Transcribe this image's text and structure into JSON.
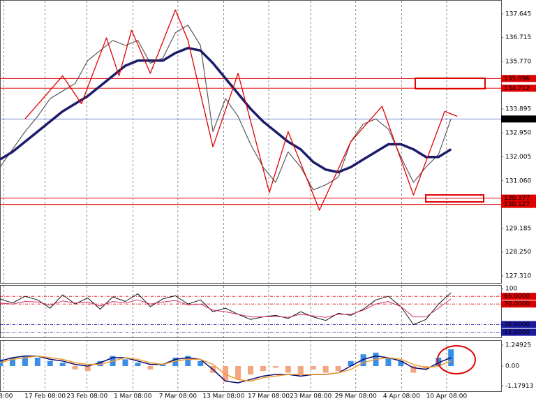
{
  "chart_data": [
    {
      "type": "line",
      "xlim": [
        0,
        80
      ],
      "ylim": [
        127.03,
        138.11
      ],
      "x": [
        0,
        2,
        4,
        6,
        8,
        10,
        12,
        14,
        16,
        18,
        20,
        22,
        24,
        26,
        28,
        30,
        32,
        34,
        36,
        38,
        40,
        42,
        44,
        46,
        48,
        50,
        52,
        54,
        56,
        58,
        60,
        62,
        64,
        66,
        68,
        70,
        72
      ],
      "xticks": [
        {
          "value": 0.6,
          "label": "08:00"
        },
        {
          "value": 7.2,
          "label": "17 Feb 08:00"
        },
        {
          "value": 13.9,
          "label": "23 Feb 08:00"
        },
        {
          "value": 21.2,
          "label": "1 Mar 08:00"
        },
        {
          "value": 28.4,
          "label": "7 Mar 08:00"
        },
        {
          "value": 35.7,
          "label": "13 Mar 08:00"
        },
        {
          "value": 42.9,
          "label": "17 Mar 08:00"
        },
        {
          "value": 49.6,
          "label": "23 Mar 08:00"
        },
        {
          "value": 56.8,
          "label": "29 Mar 08:00"
        },
        {
          "value": 64.1,
          "label": "4 Apr 08:00"
        },
        {
          "value": 71.3,
          "label": "10 Apr 08:00"
        }
      ],
      "yticks": [
        137.645,
        136.715,
        {
          "value": 135.77,
          "label": "135.770"
        },
        133.895,
        {
          "value": 132.95,
          "label": "132.950"
        },
        132.005,
        {
          "value": 131.06,
          "label": "131.060"
        },
        129.185,
        {
          "value": 128.25,
          "label": "128.250"
        },
        {
          "value": 127.31,
          "label": "127.310"
        }
      ],
      "levels": [
        {
          "value": 135.096,
          "color": "#e00000"
        },
        {
          "value": 134.712,
          "color": "#e00000"
        },
        {
          "value": 133.498,
          "color": "#000000",
          "line_color": "#7a8fd8"
        },
        {
          "value": 130.377,
          "color": "#e00000"
        },
        {
          "value": 130.127,
          "color": "#e00000"
        }
      ],
      "series": [
        {
          "color": "#5a5a5a",
          "width": 1.2,
          "values": [
            131.6,
            132.3,
            133.0,
            133.6,
            134.3,
            134.6,
            134.9,
            135.8,
            136.2,
            136.6,
            136.4,
            136.6,
            135.7,
            135.9,
            136.9,
            137.2,
            136.4,
            133.0,
            134.3,
            133.6,
            132.5,
            131.6,
            131.0,
            132.2,
            131.6,
            130.7,
            130.9,
            131.2,
            132.6,
            133.3,
            133.5,
            133.1,
            132.0,
            131.0,
            131.6,
            132.1,
            133.5
          ]
        },
        {
          "color": "#1c1c6b",
          "width": 3.5,
          "values": [
            131.9,
            132.2,
            132.6,
            133.0,
            133.4,
            133.8,
            134.1,
            134.4,
            134.8,
            135.2,
            135.6,
            135.8,
            135.8,
            135.8,
            136.1,
            136.3,
            136.2,
            135.7,
            135.1,
            134.5,
            133.9,
            133.4,
            133.0,
            132.6,
            132.3,
            131.8,
            131.5,
            131.4,
            131.6,
            131.9,
            132.2,
            132.5,
            132.5,
            132.3,
            132.0,
            132.0,
            132.3
          ]
        },
        {
          "color": "#e00000",
          "width": 1.3,
          "x": [
            4,
            10,
            13,
            17,
            19,
            21,
            24,
            28,
            30,
            34,
            38,
            43,
            46,
            51,
            56,
            61,
            66,
            71,
            73
          ],
          "values": [
            133.5,
            135.2,
            134.1,
            136.7,
            135.2,
            137.0,
            135.3,
            137.8,
            136.6,
            132.4,
            135.3,
            130.6,
            133.0,
            129.9,
            132.6,
            134.0,
            130.5,
            133.8,
            133.6
          ]
        }
      ]
    },
    {
      "type": "line",
      "xlim": [
        0,
        80
      ],
      "ylim": [
        5,
        107
      ],
      "x": [
        0,
        2,
        4,
        6,
        8,
        10,
        12,
        14,
        16,
        18,
        20,
        22,
        24,
        26,
        28,
        30,
        32,
        34,
        36,
        38,
        40,
        42,
        44,
        46,
        48,
        50,
        52,
        54,
        56,
        58,
        60,
        62,
        64,
        66,
        68,
        70,
        72
      ],
      "yticks": [
        100,
        {
          "value": 85,
          "label": "85.0000",
          "color": "#e00000"
        },
        {
          "value": 70,
          "label": "70.0000",
          "color": "#e00000"
        },
        {
          "value": 30,
          "label": "30.0000",
          "color": "#1a1aa0"
        },
        {
          "value": 15,
          "label": "15.0000",
          "color": "#1a1aa0"
        }
      ],
      "series": [
        {
          "color": "#111111",
          "width": 1,
          "values": [
            80,
            72,
            85,
            78,
            62,
            88,
            70,
            82,
            60,
            84,
            75,
            90,
            65,
            80,
            86,
            70,
            78,
            55,
            62,
            50,
            40,
            45,
            48,
            42,
            55,
            45,
            38,
            52,
            48,
            60,
            78,
            85,
            65,
            30,
            40,
            70,
            92
          ]
        },
        {
          "color": "#d0306a",
          "width": 1,
          "values": [
            72,
            70,
            75,
            74,
            68,
            76,
            72,
            74,
            66,
            75,
            72,
            78,
            70,
            74,
            77,
            68,
            70,
            58,
            55,
            50,
            45,
            45,
            46,
            44,
            50,
            47,
            44,
            50,
            50,
            58,
            70,
            75,
            65,
            45,
            45,
            62,
            80
          ]
        }
      ]
    },
    {
      "type": "bar",
      "xlim": [
        0,
        80
      ],
      "ylim": [
        -1.5,
        1.54
      ],
      "x": [
        0,
        2,
        4,
        6,
        8,
        10,
        12,
        14,
        16,
        18,
        20,
        22,
        24,
        26,
        28,
        30,
        32,
        34,
        36,
        38,
        40,
        42,
        44,
        46,
        48,
        50,
        52,
        54,
        56,
        58,
        60,
        62,
        64,
        66,
        68,
        70,
        72
      ],
      "yticks": [
        1.24925,
        {
          "value": 0,
          "label": "0.00"
        },
        -1.17913
      ],
      "series": [
        {
          "color_pos": "#3a8ee6",
          "color_neg": "#f4a582",
          "values": [
            0.4,
            0.5,
            0.6,
            0.5,
            0.3,
            0.2,
            -0.2,
            -0.3,
            0.3,
            0.6,
            0.4,
            0.2,
            -0.2,
            0.1,
            0.5,
            0.6,
            0.3,
            -0.4,
            -0.9,
            -0.8,
            -0.5,
            -0.3,
            -0.1,
            -0.4,
            -0.5,
            -0.2,
            -0.4,
            -0.3,
            0.3,
            0.7,
            0.8,
            0.5,
            0.3,
            -0.4,
            -0.2,
            0.5,
            1.0
          ]
        },
        {
          "type": "line",
          "color": "#0a0a70",
          "width": 1.5,
          "values": [
            0.3,
            0.5,
            0.6,
            0.6,
            0.4,
            0.3,
            0.1,
            0.0,
            0.2,
            0.5,
            0.5,
            0.3,
            0.1,
            0.1,
            0.4,
            0.5,
            0.4,
            -0.2,
            -0.9,
            -1.0,
            -0.8,
            -0.6,
            -0.5,
            -0.5,
            -0.6,
            -0.5,
            -0.5,
            -0.4,
            0.0,
            0.4,
            0.6,
            0.5,
            0.3,
            -0.1,
            -0.2,
            0.2,
            0.5
          ]
        },
        {
          "type": "line",
          "color": "#f29a2e",
          "width": 1.5,
          "values": [
            0.2,
            0.4,
            0.5,
            0.6,
            0.5,
            0.4,
            0.2,
            0.1,
            0.1,
            0.3,
            0.5,
            0.4,
            0.2,
            0.1,
            0.3,
            0.4,
            0.4,
            0.1,
            -0.5,
            -0.8,
            -0.9,
            -0.7,
            -0.6,
            -0.5,
            -0.5,
            -0.5,
            -0.5,
            -0.4,
            -0.2,
            0.2,
            0.4,
            0.5,
            0.4,
            0.1,
            -0.1,
            0.0,
            0.3
          ]
        }
      ]
    }
  ]
}
